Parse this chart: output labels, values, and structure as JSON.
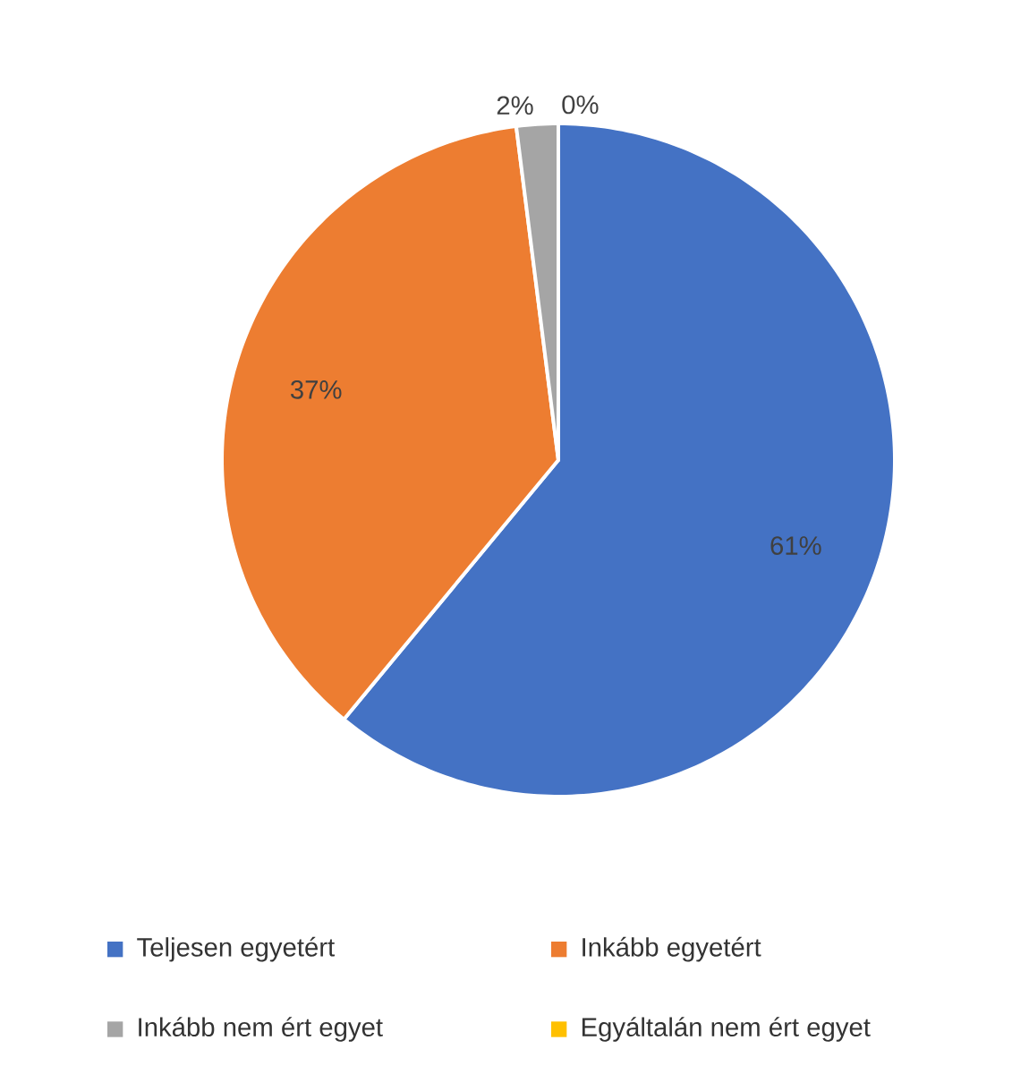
{
  "chart_data": {
    "type": "pie",
    "categories": [
      "Teljesen egyetért",
      "Inkább egyetért",
      "Inkább nem ért egyet",
      "Egyáltalán nem ért egyet"
    ],
    "values": [
      61,
      37,
      2,
      0
    ],
    "colors": [
      "#4472c4",
      "#ed7d31",
      "#a5a5a5",
      "#ffc000"
    ],
    "value_labels": [
      "61%",
      "37%",
      "2%",
      "0%"
    ],
    "legend": "bottom"
  }
}
